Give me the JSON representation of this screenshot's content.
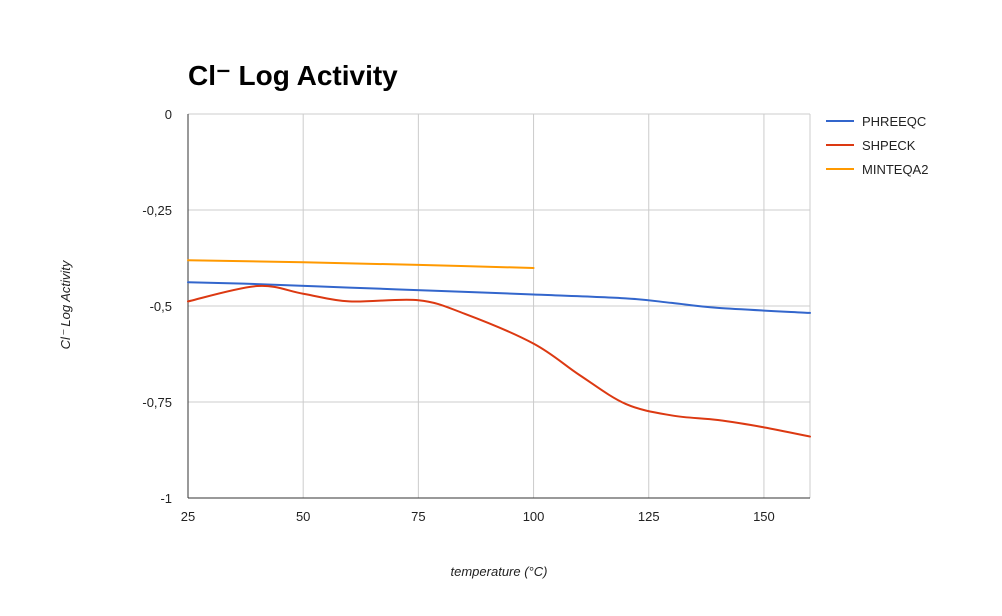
{
  "chart_data": {
    "type": "line",
    "title": "Cl⁻ Log Activity",
    "xlabel": "temperature (°C)",
    "ylabel": "Cl⁻ Log Activity",
    "xlim": [
      25,
      160
    ],
    "ylim": [
      -1,
      0
    ],
    "x_ticks": [
      25,
      50,
      75,
      100,
      125,
      150
    ],
    "x_tick_labels": [
      "25",
      "50",
      "75",
      "100",
      "125",
      "150"
    ],
    "y_ticks": [
      0,
      -0.25,
      -0.5,
      -0.75,
      -1
    ],
    "y_tick_labels": [
      "0",
      "-0,25",
      "-0,5",
      "-0,75",
      "-1"
    ],
    "grid": true,
    "legend_position": "right-top",
    "series": [
      {
        "name": "PHREEQC",
        "color": "#3366cc",
        "points": [
          [
            25,
            -0.438
          ],
          [
            40,
            -0.443
          ],
          [
            60,
            -0.452
          ],
          [
            80,
            -0.461
          ],
          [
            100,
            -0.47
          ],
          [
            120,
            -0.48
          ],
          [
            130,
            -0.492
          ],
          [
            140,
            -0.505
          ],
          [
            160,
            -0.518
          ]
        ]
      },
      {
        "name": "SHPECK",
        "color": "#dc3912",
        "points": [
          [
            25,
            -0.488
          ],
          [
            40,
            -0.448
          ],
          [
            50,
            -0.468
          ],
          [
            60,
            -0.488
          ],
          [
            75,
            -0.485
          ],
          [
            85,
            -0.52
          ],
          [
            100,
            -0.598
          ],
          [
            110,
            -0.68
          ],
          [
            120,
            -0.755
          ],
          [
            130,
            -0.785
          ],
          [
            140,
            -0.797
          ],
          [
            150,
            -0.816
          ],
          [
            160,
            -0.84
          ]
        ]
      },
      {
        "name": "MINTEQA2",
        "color": "#ff9900",
        "points": [
          [
            25,
            -0.381
          ],
          [
            50,
            -0.386
          ],
          [
            75,
            -0.393
          ],
          [
            100,
            -0.401
          ]
        ]
      }
    ]
  }
}
